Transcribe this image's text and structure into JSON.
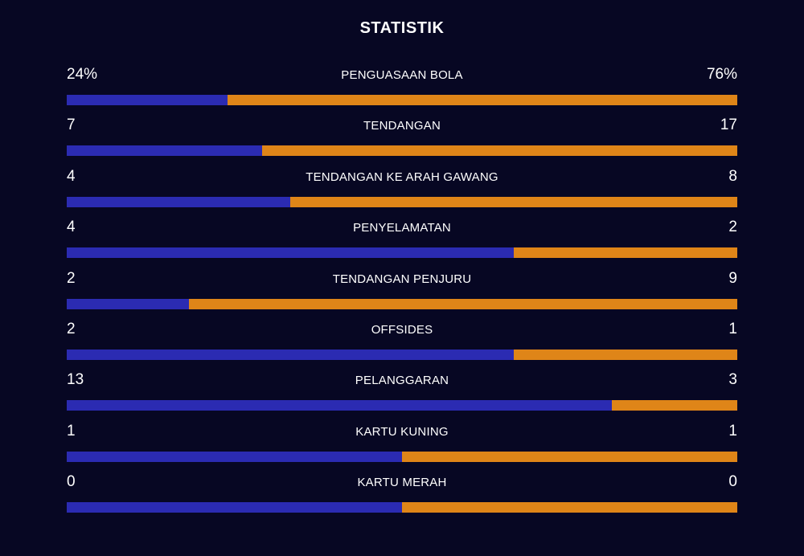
{
  "header": {
    "title": "STATISTIK"
  },
  "colors": {
    "background": "#070723",
    "home": "#2b2bb2",
    "away": "#df8518",
    "text": "#ffffff"
  },
  "stats": [
    {
      "label": "PENGUASAAN BOLA",
      "home": "24%",
      "away": "76%",
      "home_share": 0.24
    },
    {
      "label": "TENDANGAN",
      "home": "7",
      "away": "17",
      "home_share": 0.2917
    },
    {
      "label": "TENDANGAN KE ARAH GAWANG",
      "home": "4",
      "away": "8",
      "home_share": 0.3333
    },
    {
      "label": "PENYELAMATAN",
      "home": "4",
      "away": "2",
      "home_share": 0.6667
    },
    {
      "label": "TENDANGAN PENJURU",
      "home": "2",
      "away": "9",
      "home_share": 0.1818
    },
    {
      "label": "OFFSIDES",
      "home": "2",
      "away": "1",
      "home_share": 0.6667
    },
    {
      "label": "PELANGGARAN",
      "home": "13",
      "away": "3",
      "home_share": 0.8125
    },
    {
      "label": "KARTU KUNING",
      "home": "1",
      "away": "1",
      "home_share": 0.5
    },
    {
      "label": "KARTU MERAH",
      "home": "0",
      "away": "0",
      "home_share": 0.5
    }
  ]
}
